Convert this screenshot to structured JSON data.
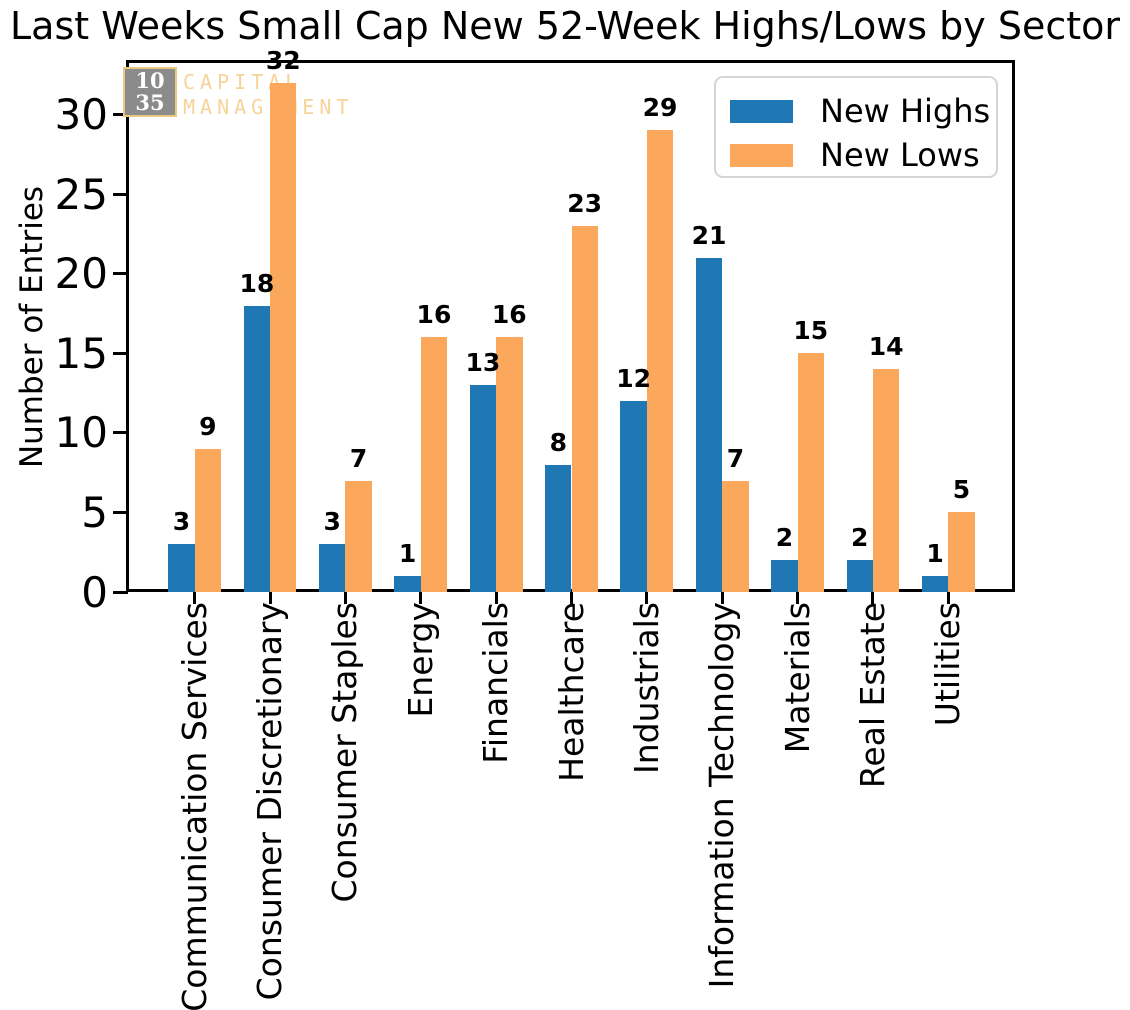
{
  "watermark": {
    "box_line1": "10",
    "box_line2": "35",
    "company_line1": "CAPITAL",
    "company_line2": "MANAGEMENT"
  },
  "colors": {
    "new_highs": "#1f77b4",
    "new_lows": "#fba85c",
    "axis": "#000000",
    "legend_border": "#d5d5d5",
    "watermark_box_fill": "#8b8b8b",
    "watermark_box_border": "#e9c87f",
    "watermark_text": "#f6d399"
  },
  "chart_data": {
    "type": "bar",
    "title": "Last Weeks Small Cap New 52-Week Highs/Lows by Sector",
    "xlabel": "",
    "ylabel": "Number of Entries",
    "categories": [
      "Communication Services",
      "Consumer Discretionary",
      "Consumer Staples",
      "Energy",
      "Financials",
      "Healthcare",
      "Industrials",
      "Information Technology",
      "Materials",
      "Real Estate",
      "Utilities"
    ],
    "series": [
      {
        "name": "New Highs",
        "color": "#1f77b4",
        "values": [
          3,
          18,
          3,
          1,
          13,
          8,
          12,
          21,
          2,
          2,
          1
        ]
      },
      {
        "name": "New Lows",
        "color": "#fba85c",
        "values": [
          9,
          32,
          7,
          16,
          16,
          23,
          29,
          7,
          15,
          14,
          5
        ]
      }
    ],
    "yticks": [
      0,
      5,
      10,
      15,
      20,
      25,
      30
    ],
    "ylim": [
      0,
      33.3
    ],
    "bar_value_labels": true,
    "grid": false,
    "legend_position": "upper right",
    "xtick_rotation": 90
  }
}
